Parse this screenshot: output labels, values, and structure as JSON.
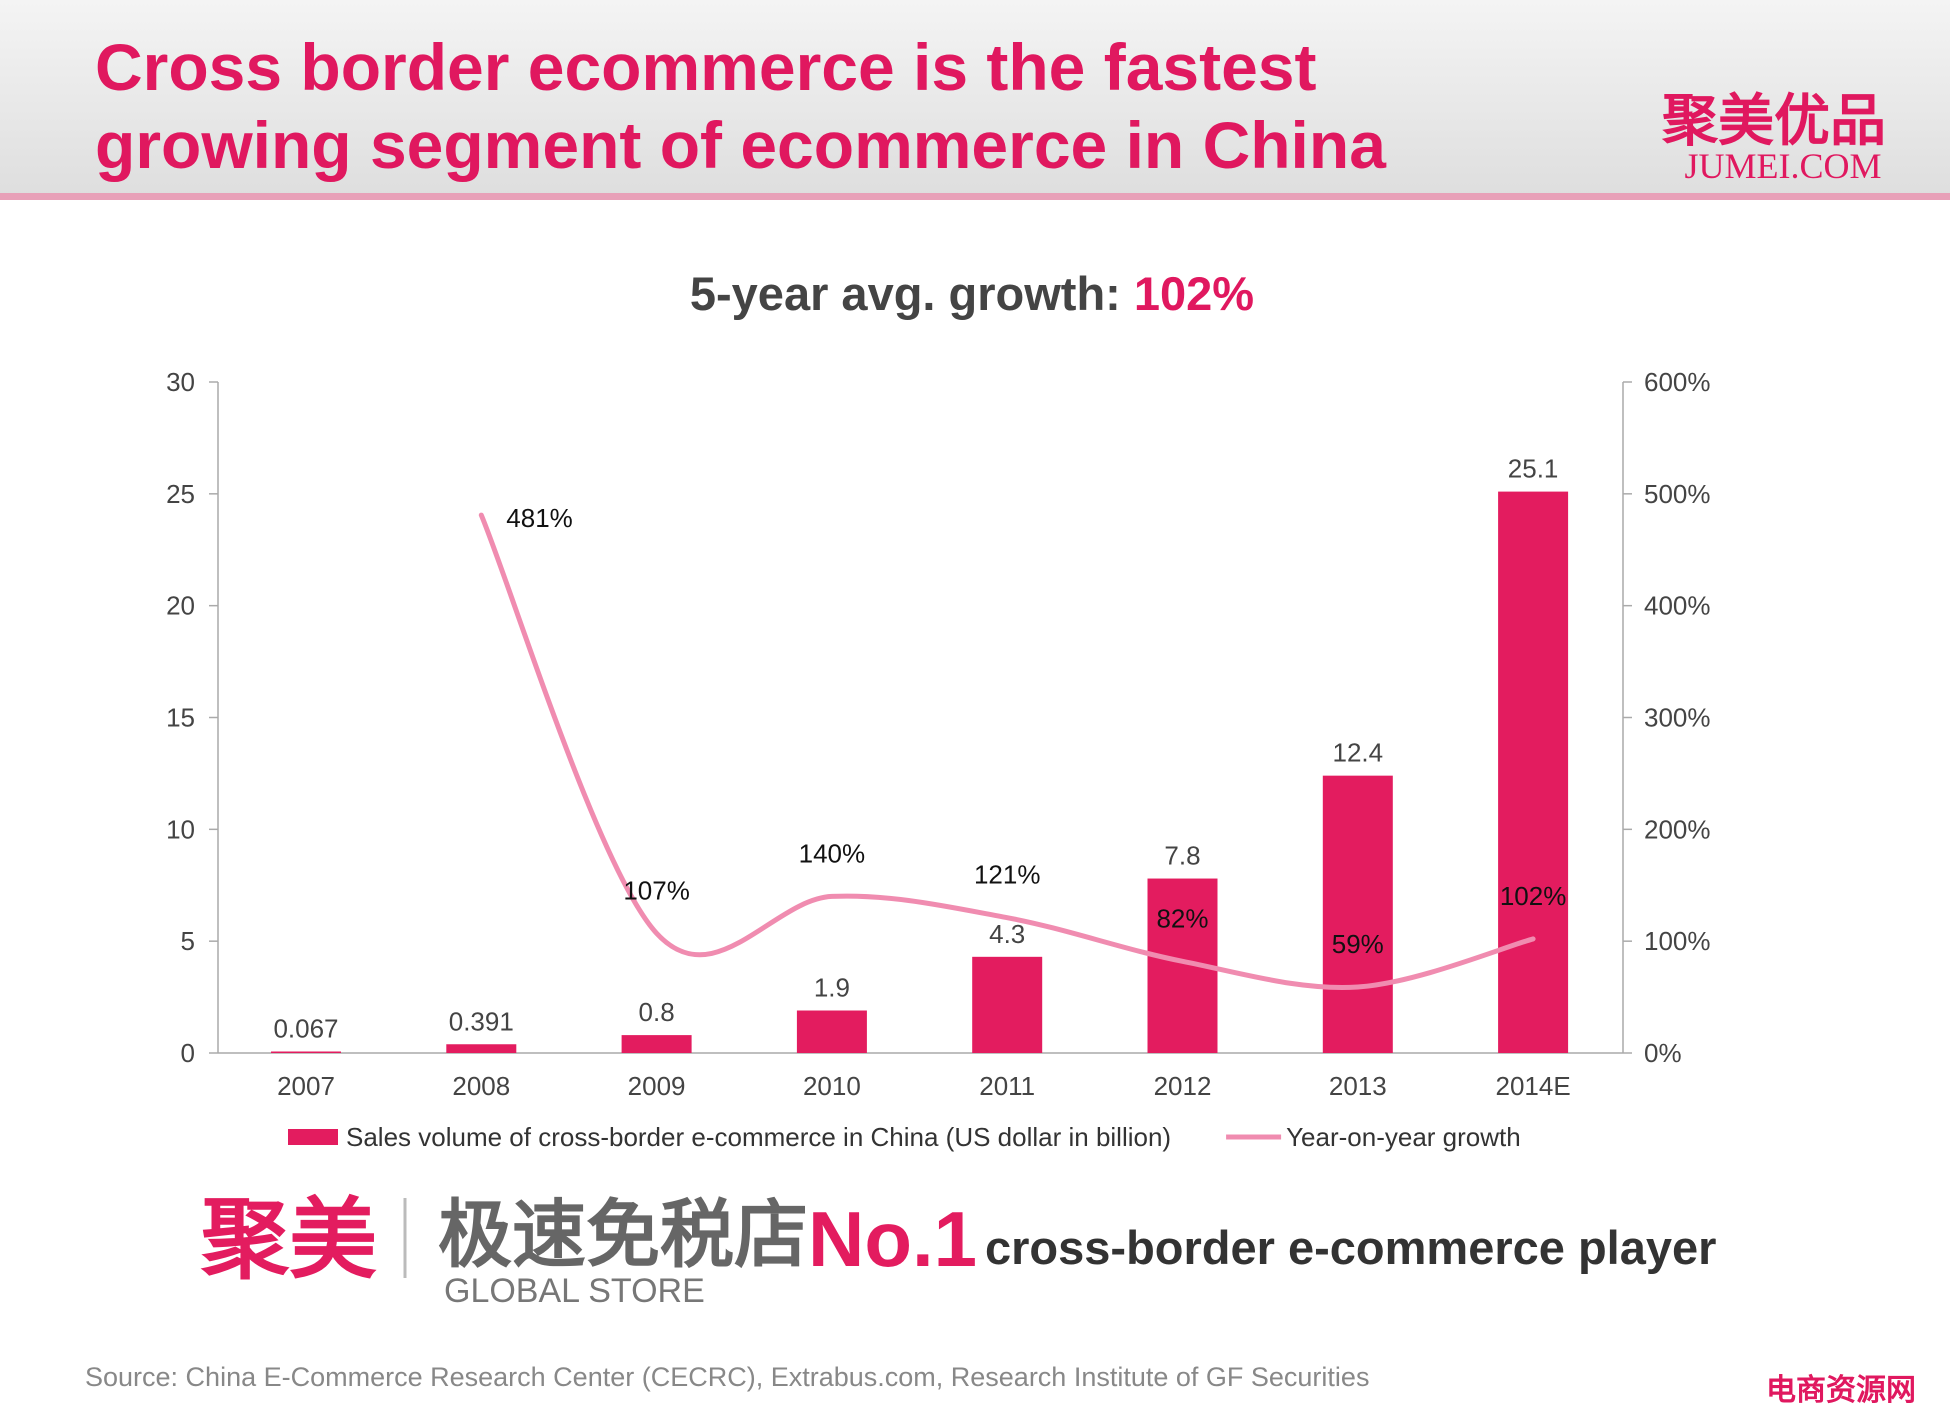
{
  "header": {
    "title": [
      "Cross border ecommerce is the fastest",
      "growing segment of ecommerce in China"
    ],
    "logo": "聚美优品",
    "logo_sub": "JUMEI.COM"
  },
  "chart_data": {
    "type": "bar",
    "subtitle": {
      "text": "5-year avg. growth:",
      "highlight": "102%"
    },
    "categories": [
      "2007",
      "2008",
      "2009",
      "2010",
      "2011",
      "2012",
      "2013",
      "2014E"
    ],
    "series": [
      {
        "name": "Sales volume of cross-border e-commerce in China (US dollar in billion)",
        "type": "bar",
        "color": "#e31c5f",
        "values": [
          0.067,
          0.391,
          0.8,
          1.9,
          4.3,
          7.8,
          12.4,
          25.1
        ]
      },
      {
        "name": "Year-on-year growth",
        "type": "line",
        "axis": "y2",
        "color": "#f08cb0",
        "values": [
          null,
          481,
          107,
          140,
          121,
          82,
          59,
          102
        ],
        "value_labels": [
          null,
          "481%",
          "107%",
          "140%",
          "121%",
          "82%",
          "59%",
          "102%"
        ]
      }
    ],
    "ylim": [
      0,
      30
    ],
    "yticks": [
      0,
      5,
      10,
      15,
      20,
      25,
      30
    ],
    "y2lim": [
      0,
      600
    ],
    "y2ticks": [
      {
        "value": 0,
        "label": "0%"
      },
      {
        "value": 100,
        "label": "100%"
      },
      {
        "value": 200,
        "label": "200%"
      },
      {
        "value": 300,
        "label": "300%"
      },
      {
        "value": 400,
        "label": "400%"
      },
      {
        "value": 500,
        "label": "500%"
      },
      {
        "value": 600,
        "label": "600%"
      }
    ],
    "grid": false,
    "legend": "bottom"
  },
  "banner": {
    "brand": "聚美",
    "store": "极速免税店",
    "store_en": "GLOBAL STORE",
    "rank": "No.1",
    "tagline": "cross-border e-commerce player"
  },
  "footer": {
    "source": "Source: China E-Commerce Research Center (CECRC), Extrabus.com, Research Institute of GF Securities",
    "watermark": "电商资源网"
  }
}
